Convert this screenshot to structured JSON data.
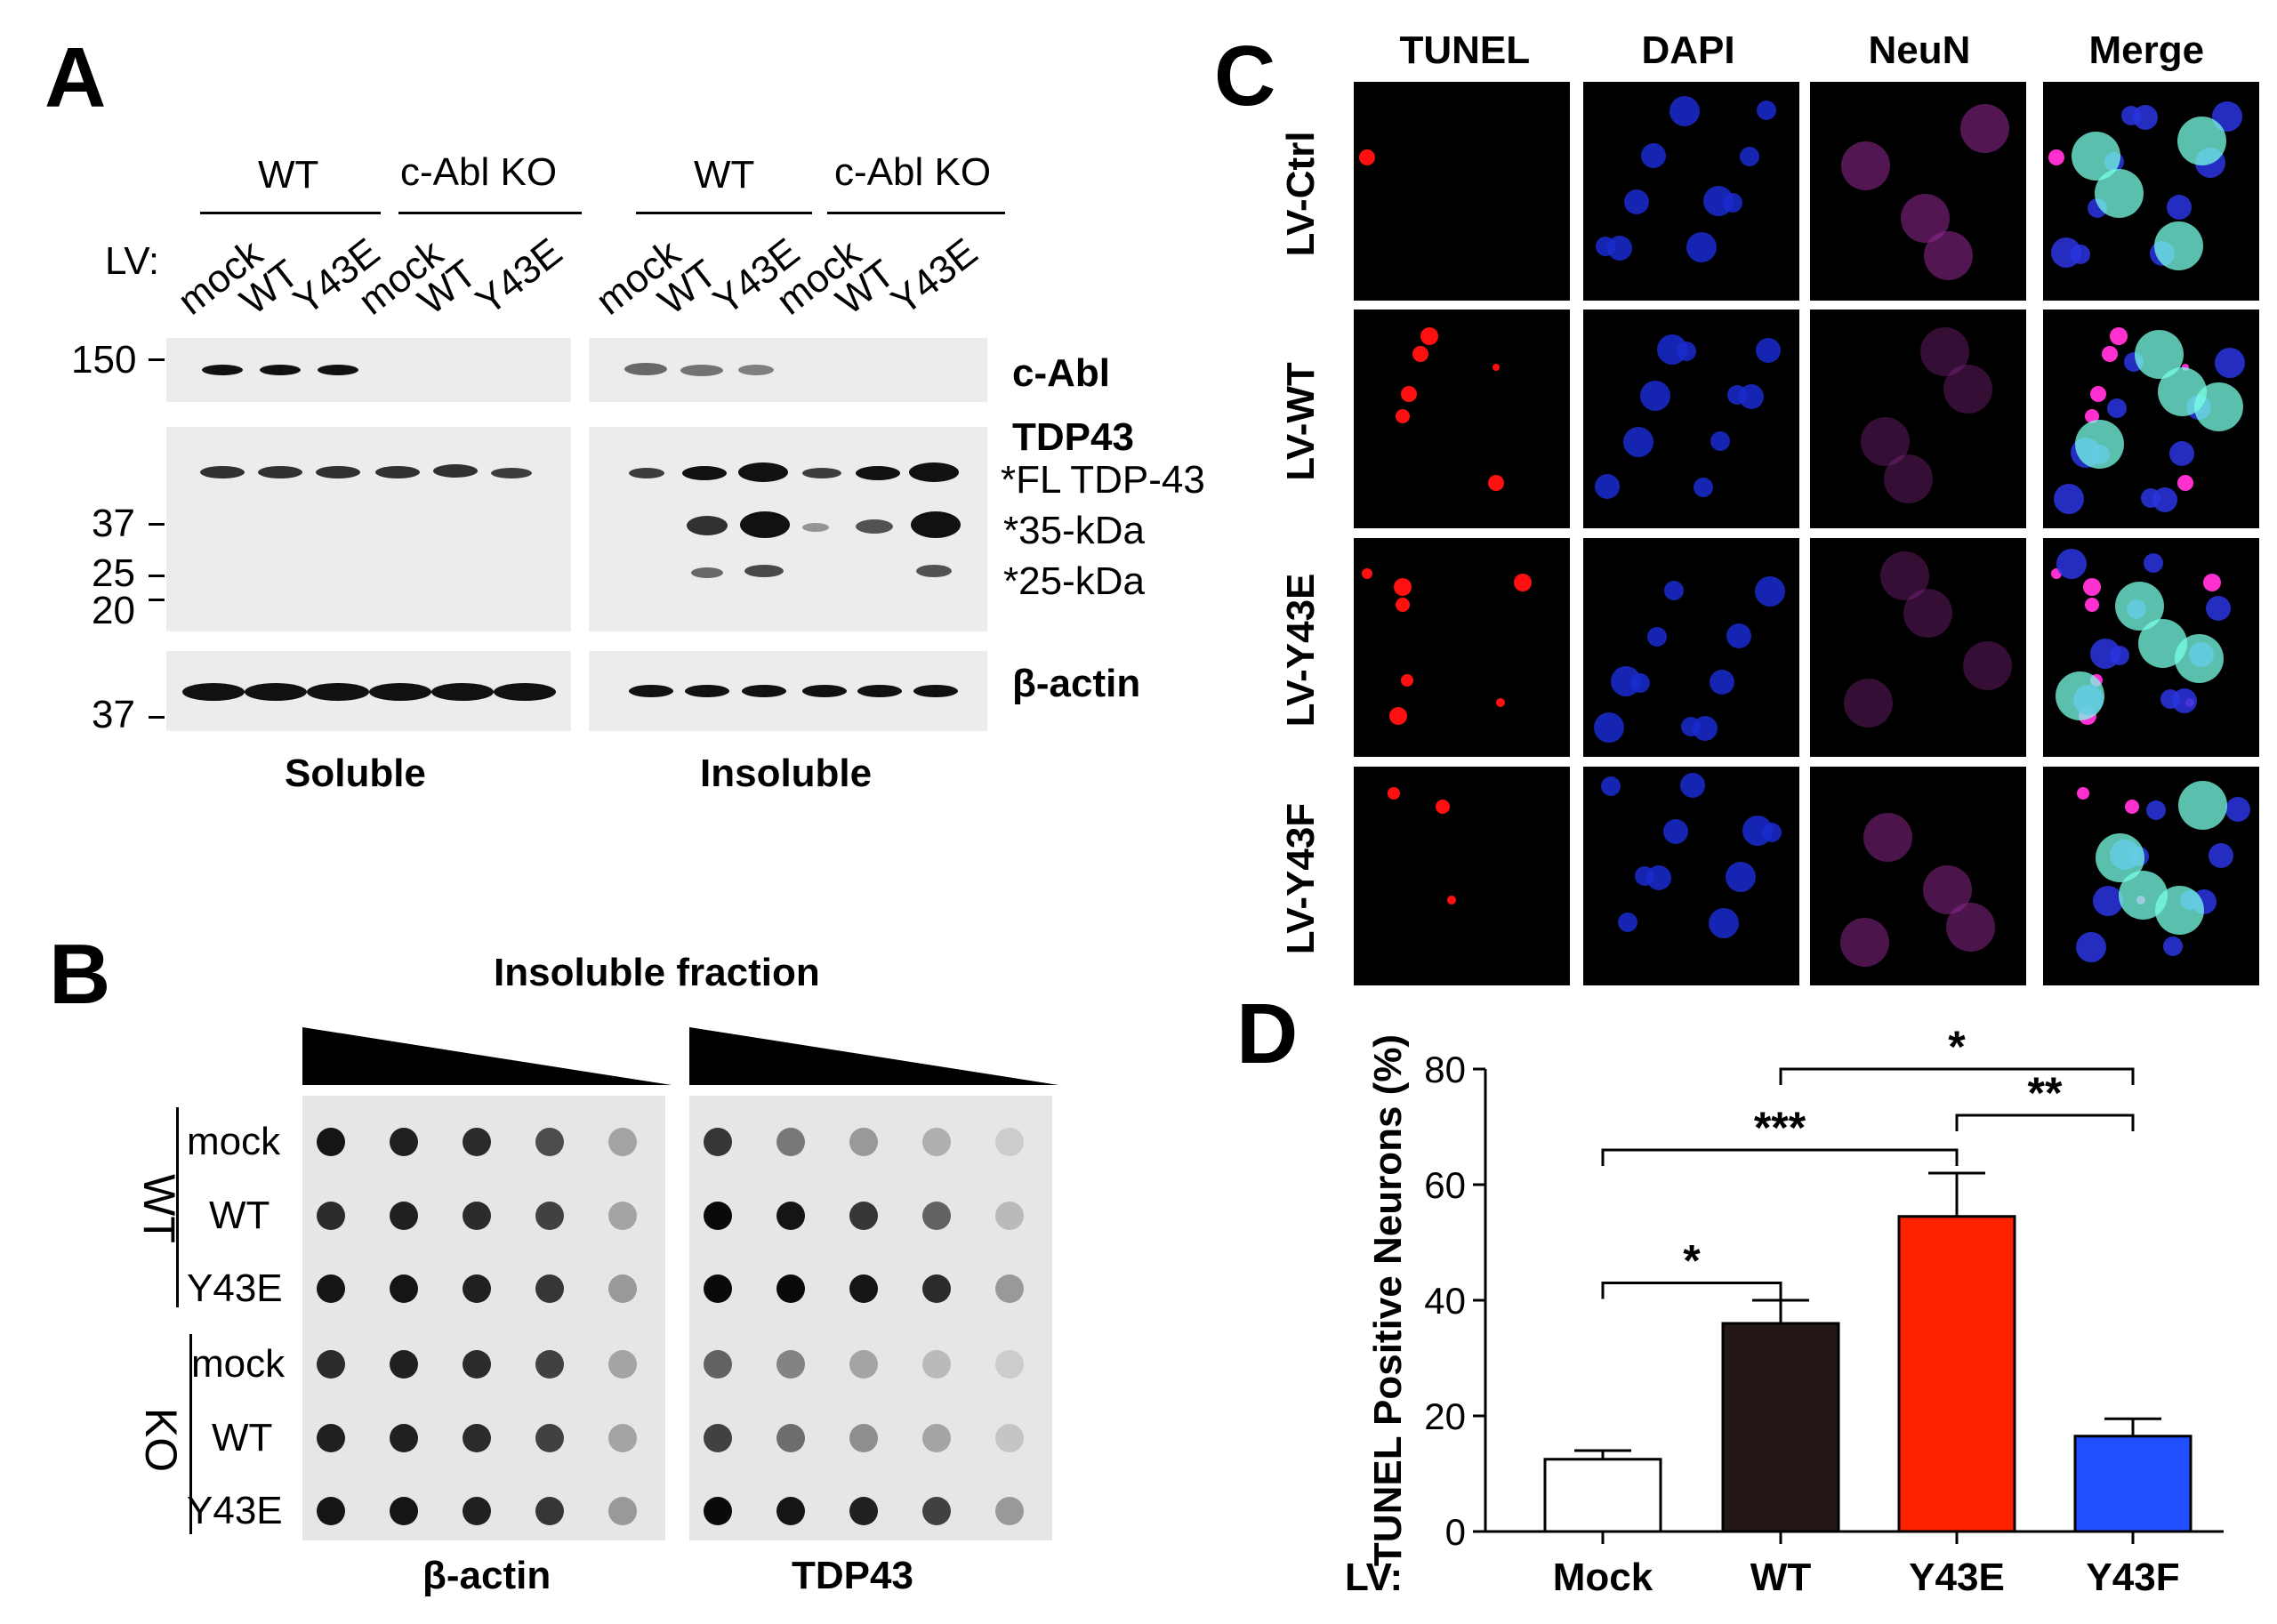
{
  "panelA": {
    "label": "A",
    "lv_label": "LV:",
    "group_headers": [
      "WT",
      "c-Abl KO",
      "WT",
      "c-Abl KO"
    ],
    "lanes": [
      "mock",
      "WT",
      "Y43E",
      "mock",
      "WT",
      "Y43E",
      "mock",
      "WT",
      "Y43E",
      "mock",
      "WT",
      "Y43E"
    ],
    "mw_markers": [
      "150",
      "37",
      "25",
      "20",
      "37"
    ],
    "blot_labels": {
      "cabl": "c-Abl",
      "tdp43": "TDP43",
      "fl": "*FL TDP-43",
      "kda35": "*35-kDa",
      "kda25": "*25-kDa",
      "actin": "β-actin"
    },
    "fraction_labels": [
      "Soluble",
      "Insoluble"
    ]
  },
  "panelB": {
    "label": "B",
    "title": "Insoluble fraction",
    "rows": [
      "mock",
      "WT",
      "Y43E",
      "mock",
      "WT",
      "Y43E"
    ],
    "groups": [
      "WT",
      "KO"
    ],
    "columns": [
      "β-actin",
      "TDP43"
    ]
  },
  "panelC": {
    "label": "C",
    "channels": [
      "TUNEL",
      "DAPI",
      "NeuN",
      "Merge"
    ],
    "conditions": [
      "LV-Ctrl",
      "LV-WT",
      "LV-Y43E",
      "LV-Y43F"
    ]
  },
  "panelD": {
    "label": "D",
    "lv_prefix": "LV:",
    "significance": [
      "*",
      "***",
      "*",
      "**"
    ]
  },
  "chart_data": {
    "type": "bar",
    "title": "",
    "xlabel": "LV:",
    "ylabel": "TUNEL Positive Neurons (%)",
    "categories": [
      "Mock",
      "WT",
      "Y43E",
      "Y43F"
    ],
    "values": [
      12.5,
      36,
      54.5,
      16.5
    ],
    "errors": [
      1.5,
      4,
      7.5,
      3
    ],
    "ylim": [
      0,
      80
    ],
    "yticks": [
      0,
      20,
      40,
      60,
      80
    ],
    "colors": [
      "#ffffff",
      "#231816",
      "#ff2200",
      "#1f4fff"
    ]
  }
}
